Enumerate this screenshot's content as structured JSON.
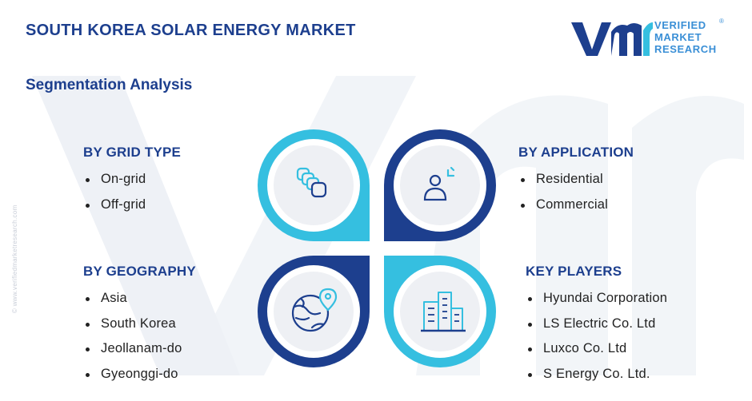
{
  "header": {
    "title": "SOUTH KOREA SOLAR ENERGY MARKET",
    "subtitle": "Segmentation Analysis"
  },
  "logo": {
    "mark": "vmr",
    "line1": "VERIFIED",
    "line2": "MARKET",
    "line3": "RESEARCH",
    "registered": "®"
  },
  "side_watermark": "© www.verifiedmarketresearch.com",
  "segments": {
    "grid_type": {
      "heading": "BY GRID TYPE",
      "items": [
        "On-grid",
        "Off-grid"
      ]
    },
    "application": {
      "heading": "BY APPLICATION",
      "items": [
        "Residential",
        "Commercial"
      ]
    },
    "geography": {
      "heading": "BY GEOGRAPHY",
      "items": [
        "Asia",
        "South Korea",
        "Jeollanam-do",
        "Gyeonggi-do"
      ]
    },
    "key_players": {
      "heading": "KEY PLAYERS",
      "items": [
        "Hyundai Corporation",
        "LS Electric Co. Ltd",
        "Luxco Co. Ltd",
        "S Energy Co. Ltd."
      ]
    }
  },
  "icons": {
    "top_left": "stacked-layers-icon",
    "top_right": "user-with-network-icon",
    "bottom_left": "globe-location-icon",
    "bottom_right": "buildings-icon"
  },
  "colors": {
    "navy": "#1d3f8e",
    "cyan": "#35bfe0",
    "logo_blue": "#3a8fd6",
    "watermark": "#eef1f8"
  }
}
